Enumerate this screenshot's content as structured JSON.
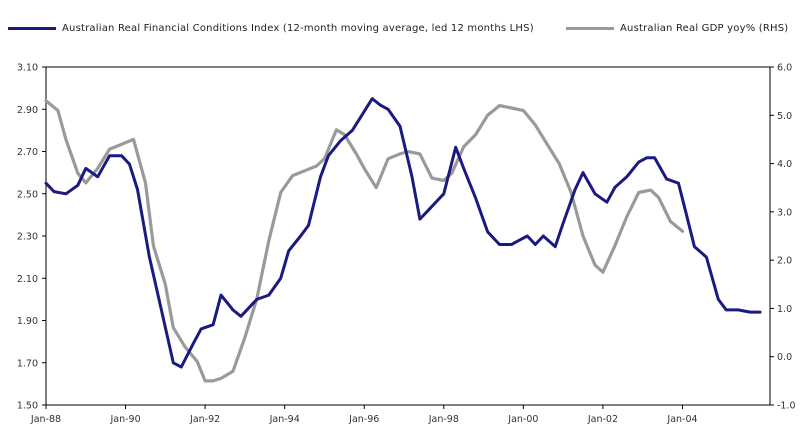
{
  "chart_data": {
    "type": "line",
    "title": "",
    "xlabel": "",
    "ylabel": "",
    "x_tick_labels": [
      "Jan-88",
      "Jan-90",
      "Jan-92",
      "Jan-94",
      "Jan-96",
      "Jan-98",
      "Jan-00",
      "Jan-02",
      "Jan-04"
    ],
    "x_tick_values": [
      1988,
      1990,
      1992,
      1994,
      1996,
      1998,
      2000,
      2002,
      2004
    ],
    "xlim": [
      1988,
      2006.2
    ],
    "ylim_left": [
      1.5,
      3.1
    ],
    "ylim_right": [
      -1.0,
      6.0
    ],
    "y_left_ticks": [
      "1.50",
      "1.70",
      "1.90",
      "2.10",
      "2.30",
      "2.50",
      "2.70",
      "2.90",
      "3.10"
    ],
    "y_right_ticks": [
      "-1.0",
      "0.0",
      "1.0",
      "2.0",
      "3.0",
      "4.0",
      "5.0",
      "6.0"
    ],
    "grid": false,
    "legend_position": "top",
    "series": [
      {
        "name": "Australian Real Financial Conditions Index (12-month moving average, led 12 months LHS)",
        "axis": "left",
        "color": "#1a1a80",
        "x": [
          1988.0,
          1988.2,
          1988.5,
          1988.8,
          1989.0,
          1989.3,
          1989.6,
          1989.9,
          1990.1,
          1990.3,
          1990.6,
          1990.9,
          1991.2,
          1991.4,
          1991.7,
          1991.9,
          1992.2,
          1992.4,
          1992.7,
          1992.9,
          1993.1,
          1993.3,
          1993.6,
          1993.9,
          1994.1,
          1994.4,
          1994.6,
          1994.9,
          1995.1,
          1995.4,
          1995.7,
          1995.9,
          1996.2,
          1996.4,
          1996.6,
          1996.9,
          1997.2,
          1997.4,
          1997.6,
          1997.9,
          1998.0,
          1998.3,
          1998.5,
          1998.8,
          1999.1,
          1999.4,
          1999.7,
          1999.9,
          2000.1,
          2000.3,
          2000.5,
          2000.8,
          2001.0,
          2001.3,
          2001.5,
          2001.8,
          2002.1,
          2002.3,
          2002.6,
          2002.9,
          2003.1,
          2003.3,
          2003.6,
          2003.9,
          2004.1,
          2004.3,
          2004.6,
          2004.9,
          2005.1,
          2005.4,
          2005.7,
          2005.95
        ],
        "y": [
          2.55,
          2.51,
          2.5,
          2.54,
          2.62,
          2.58,
          2.68,
          2.68,
          2.64,
          2.52,
          2.2,
          1.95,
          1.7,
          1.68,
          1.79,
          1.86,
          1.88,
          2.02,
          1.95,
          1.92,
          1.96,
          2.0,
          2.02,
          2.1,
          2.23,
          2.3,
          2.35,
          2.58,
          2.68,
          2.75,
          2.8,
          2.86,
          2.95,
          2.92,
          2.9,
          2.82,
          2.58,
          2.38,
          2.42,
          2.48,
          2.5,
          2.72,
          2.62,
          2.48,
          2.32,
          2.26,
          2.26,
          2.28,
          2.3,
          2.26,
          2.3,
          2.25,
          2.36,
          2.52,
          2.6,
          2.5,
          2.46,
          2.53,
          2.58,
          2.65,
          2.67,
          2.67,
          2.57,
          2.55,
          2.4,
          2.25,
          2.2,
          2.0,
          1.95,
          1.95,
          1.94,
          1.94
        ]
      },
      {
        "name": "Australian Real GDP yoy% (RHS)",
        "axis": "right",
        "color": "#9a9a9a",
        "x": [
          1988.0,
          1988.3,
          1988.5,
          1988.8,
          1989.0,
          1989.3,
          1989.6,
          1989.9,
          1990.2,
          1990.5,
          1990.7,
          1991.0,
          1991.2,
          1991.5,
          1991.8,
          1992.0,
          1992.2,
          1992.4,
          1992.7,
          1993.0,
          1993.3,
          1993.6,
          1993.9,
          1994.2,
          1994.5,
          1994.8,
          1995.0,
          1995.3,
          1995.5,
          1995.8,
          1996.0,
          1996.3,
          1996.6,
          1996.9,
          1997.1,
          1997.4,
          1997.7,
          1998.0,
          1998.2,
          1998.5,
          1998.8,
          1999.1,
          1999.4,
          1999.7,
          2000.0,
          2000.3,
          2000.6,
          2000.9,
          2001.2,
          2001.5,
          2001.8,
          2002.0,
          2002.3,
          2002.6,
          2002.9,
          2003.2,
          2003.4,
          2003.7,
          2004.0
        ],
        "y": [
          5.3,
          5.1,
          4.5,
          3.8,
          3.6,
          3.9,
          4.3,
          4.4,
          4.5,
          3.6,
          2.3,
          1.5,
          0.6,
          0.2,
          -0.1,
          -0.5,
          -0.5,
          -0.45,
          -0.3,
          0.4,
          1.2,
          2.4,
          3.4,
          3.75,
          3.85,
          3.95,
          4.1,
          4.7,
          4.6,
          4.2,
          3.9,
          3.5,
          4.1,
          4.2,
          4.25,
          4.2,
          3.7,
          3.65,
          3.8,
          4.35,
          4.6,
          5.0,
          5.2,
          5.15,
          5.1,
          4.8,
          4.4,
          4.0,
          3.4,
          2.5,
          1.9,
          1.75,
          2.3,
          2.9,
          3.4,
          3.45,
          3.3,
          2.8,
          2.6
        ]
      }
    ]
  }
}
